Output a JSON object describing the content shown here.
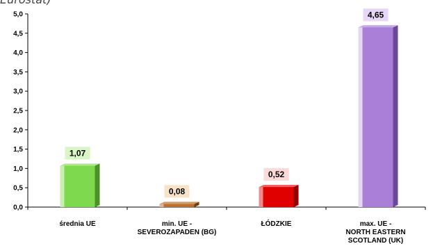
{
  "header": {
    "fragment_text": "Eurostat)"
  },
  "chart_data": {
    "type": "bar",
    "categories": [
      [
        "średnia UE"
      ],
      [
        "min. UE -",
        "SEVEROZAPADEN (BG)"
      ],
      [
        "ŁÓDZKIE"
      ],
      [
        "max. UE -",
        "NORTH EASTERN",
        "SCOTLAND  (UK)"
      ]
    ],
    "values": [
      1.07,
      0.08,
      0.52,
      4.65
    ],
    "data_labels": [
      "1,07",
      "0,08",
      "0,52",
      "4,65"
    ],
    "yticks": [
      "0,0",
      "0,5",
      "1,0",
      "1,5",
      "2,0",
      "2,5",
      "3,0",
      "3,5",
      "4,0",
      "4,5",
      "5,0"
    ],
    "ylim": [
      0,
      5.0
    ],
    "ystep": 0.5,
    "grid": false,
    "legend": "none",
    "bar_colors": [
      {
        "front": "#7ed94f",
        "side": "#4e8f2c",
        "top": "#a8ec82",
        "highlight": "#d2f5b6"
      },
      {
        "front": "#b87333",
        "side": "#6e3f14",
        "top": "#d49a61",
        "highlight": "#e8c29a"
      },
      {
        "front": "#e00000",
        "side": "#8a0000",
        "top": "#ff5a5a",
        "highlight": "#ff9d9d"
      },
      {
        "front": "#a97fd8",
        "side": "#6a4a96",
        "top": "#c6a6ea",
        "highlight": "#f0e6fb"
      }
    ],
    "label_backgrounds": [
      "#d9f5c6",
      "#f7e3c8",
      "#fbdada",
      "#e6d6f7"
    ]
  }
}
